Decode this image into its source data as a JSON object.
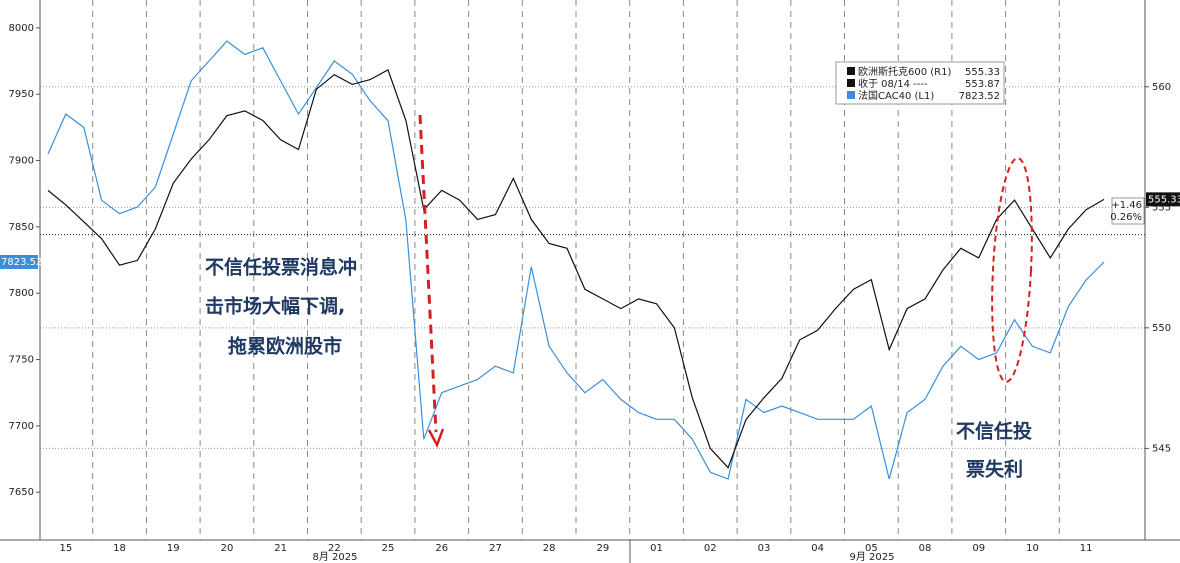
{
  "chart_data": {
    "type": "line",
    "categories": [
      null,
      "15",
      null,
      null,
      "18",
      null,
      null,
      "19",
      null,
      null,
      "20",
      null,
      null,
      "21",
      null,
      null,
      "22",
      null,
      null,
      "25",
      null,
      null,
      "26",
      null,
      null,
      "27",
      null,
      null,
      "28",
      null,
      null,
      "29",
      null,
      null,
      "01",
      null,
      null,
      "02",
      null,
      null,
      "03",
      null,
      null,
      "04",
      null,
      null,
      "05",
      null,
      null,
      "08",
      null,
      null,
      "09",
      null,
      null,
      "10",
      null,
      null,
      "11",
      null
    ],
    "months": [
      "8月 2025",
      "9月 2025"
    ],
    "series": [
      {
        "name": "欧洲斯托克600 (R1)",
        "color": "#111111",
        "axis": "y2",
        "last_value": 555.33,
        "values": [
          555.7,
          555.1,
          554.4,
          553.7,
          552.6,
          552.8,
          554.1,
          556.0,
          557.0,
          557.8,
          558.8,
          559.0,
          558.6,
          557.8,
          557.4,
          559.9,
          560.5,
          560.1,
          560.3,
          560.7,
          558.6,
          554.9,
          555.7,
          555.3,
          554.5,
          554.7,
          556.2,
          554.5,
          553.5,
          553.3,
          551.6,
          551.2,
          550.8,
          551.2,
          551.0,
          550.0,
          547.1,
          545.0,
          544.2,
          546.2,
          547.1,
          547.9,
          549.5,
          549.9,
          550.8,
          551.6,
          552.0,
          549.1,
          550.8,
          551.2,
          552.4,
          553.3,
          552.9,
          554.5,
          555.3,
          554.1,
          552.9,
          554.1,
          554.9,
          555.33
        ]
      },
      {
        "name": "法国CAC40 (L1)",
        "color": "#3a8fd9",
        "axis": "y",
        "last_value": 7823.52,
        "values": [
          7905,
          7935,
          7925,
          7870,
          7860,
          7865,
          7880,
          7920,
          7960,
          7975,
          7990,
          7980,
          7985,
          7960,
          7935,
          7955,
          7975,
          7965,
          7945,
          7930,
          7855,
          7690,
          7725,
          7730,
          7735,
          7745,
          7740,
          7820,
          7760,
          7740,
          7725,
          7735,
          7720,
          7710,
          7705,
          7705,
          7690,
          7665,
          7660,
          7720,
          7710,
          7715,
          7710,
          7705,
          7705,
          7705,
          7715,
          7660,
          7710,
          7720,
          7745,
          7760,
          7750,
          7755,
          7780,
          7760,
          7755,
          7790,
          7810,
          7823.52
        ]
      }
    ],
    "close_line": {
      "name": "收于 08/14 ----",
      "value": 553.87,
      "axis": "y2"
    },
    "change_labels": [
      "+1.46",
      "0.26%"
    ],
    "ylim": [
      7614,
      8021
    ],
    "yticks": [
      7650,
      7700,
      7750,
      7800,
      7850,
      7900,
      7950,
      8000
    ],
    "y2lim": [
      541.2,
      563.6
    ],
    "y2ticks": [
      545,
      550,
      555,
      560
    ],
    "grid": true,
    "annotations": [
      {
        "lines": [
          "不信任投票消息冲",
          "击市场大幅下调,",
          "拖累欧洲股市"
        ]
      },
      {
        "lines": [
          "不信任投",
          "票失利"
        ]
      }
    ]
  }
}
